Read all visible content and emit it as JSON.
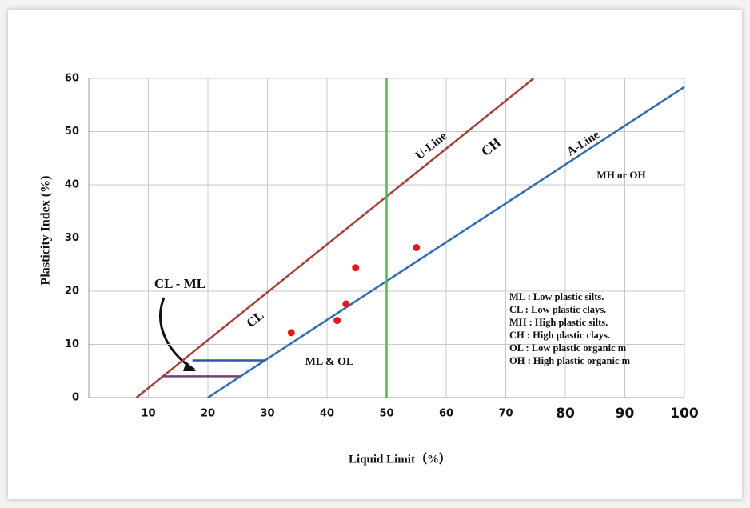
{
  "chart_data": {
    "type": "line",
    "x_label": "Liquid Limit（%）",
    "y_label": "Plasticity Index (%)",
    "xlim": [
      0,
      100
    ],
    "ylim": [
      0,
      60
    ],
    "xticks": [
      10,
      20,
      30,
      40,
      50,
      60,
      70,
      80,
      90,
      100
    ],
    "yticks": [
      0,
      10,
      20,
      30,
      40,
      50,
      60
    ],
    "grid": true,
    "series": [
      {
        "name": "U-Line",
        "type": "line",
        "color": "#a3413b",
        "x": [
          8,
          74.67
        ],
        "values": [
          0,
          60
        ]
      },
      {
        "name": "A-Line",
        "type": "line",
        "color": "#2e6db4",
        "x": [
          20,
          100
        ],
        "values": [
          0,
          58.4
        ]
      },
      {
        "type": "line",
        "color": "#4cbb5a",
        "x": [
          50,
          50
        ],
        "values": [
          0,
          60
        ]
      },
      {
        "type": "line",
        "color": "#2c5aa0",
        "x": [
          17.4,
          29.6
        ],
        "values": [
          7,
          7
        ]
      },
      {
        "type": "line",
        "color": "#7b3f6e",
        "x": [
          12.3,
          25.6
        ],
        "values": [
          4,
          4
        ]
      },
      {
        "type": "scatter",
        "color": "#e3191b",
        "x": [
          34,
          41.7,
          43.2,
          44.8,
          55
        ],
        "values": [
          12.2,
          14.5,
          17.6,
          24.4,
          28.2
        ]
      }
    ],
    "annotations": [
      "CH",
      "CL",
      "MH or OH",
      "ML & OL",
      "CL - ML"
    ],
    "notes": [
      "ML : Low plastic silts.",
      "CL : Low plastic clays.",
      "MH : High plastic silts.",
      "CH : High plastic clays.",
      "OL : Low plastic organic m",
      "OH : High plastic organic m"
    ]
  }
}
